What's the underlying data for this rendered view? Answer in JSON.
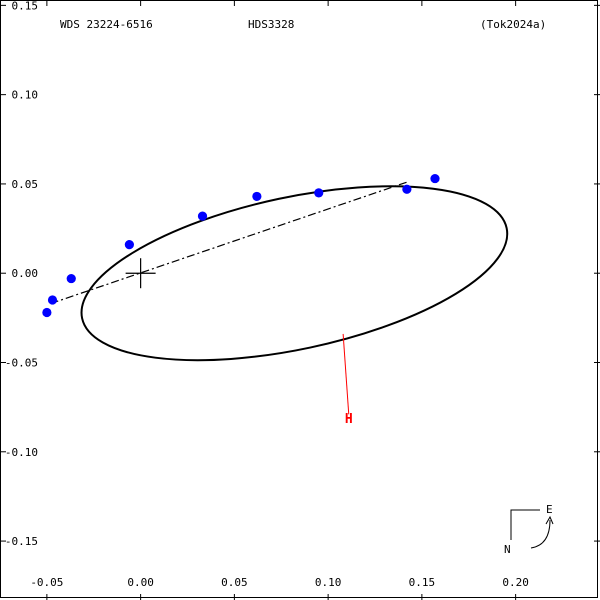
{
  "header": {
    "left": "WDS 23224-6516",
    "center": "HDS3328",
    "right": "(Tok2024a)"
  },
  "chart_data": {
    "type": "scatter",
    "title": "",
    "xlabel": "",
    "ylabel": "",
    "xlim": [
      -0.075,
      0.245
    ],
    "ylim": [
      -0.183,
      0.153
    ],
    "grid": false,
    "x_ticks": [
      -0.05,
      0.0,
      0.05,
      0.1,
      0.15,
      0.2
    ],
    "x_tick_labels": [
      "-0.05",
      "0.00",
      "0.05",
      "0.10",
      "0.15",
      "0.20"
    ],
    "y_ticks": [
      0.15,
      0.1,
      0.05,
      0.0,
      -0.05,
      -0.1,
      -0.15
    ],
    "y_tick_labels": [
      "0.15",
      "0.10",
      "0.05",
      "0.00",
      "-0.05",
      "-0.10",
      "-0.15"
    ],
    "orbit": {
      "center": [
        0.082,
        -0.0
      ]
    },
    "primary_star": [
      0.0,
      0.0
    ],
    "line_of_nodes": [
      [
        -0.048,
        -0.017
      ],
      [
        0.142,
        0.051
      ]
    ],
    "observations": [
      {
        "x": -0.05,
        "y": -0.022
      },
      {
        "x": -0.047,
        "y": -0.015
      },
      {
        "x": -0.037,
        "y": -0.003
      },
      {
        "x": -0.006,
        "y": 0.016
      },
      {
        "x": 0.033,
        "y": 0.032
      },
      {
        "x": 0.062,
        "y": 0.043
      },
      {
        "x": 0.095,
        "y": 0.045
      },
      {
        "x": 0.142,
        "y": 0.047
      },
      {
        "x": 0.157,
        "y": 0.053
      }
    ],
    "marker": {
      "label": "H",
      "from": [
        0.108,
        -0.034
      ],
      "to": [
        0.111,
        -0.079
      ],
      "label_at": [
        0.111,
        -0.084
      ],
      "color": "#ff0000"
    },
    "compass": {
      "north": "N",
      "east": "E"
    },
    "colors": {
      "points": "#0000ff",
      "orbit": "#000000",
      "marker": "#ff0000"
    }
  }
}
